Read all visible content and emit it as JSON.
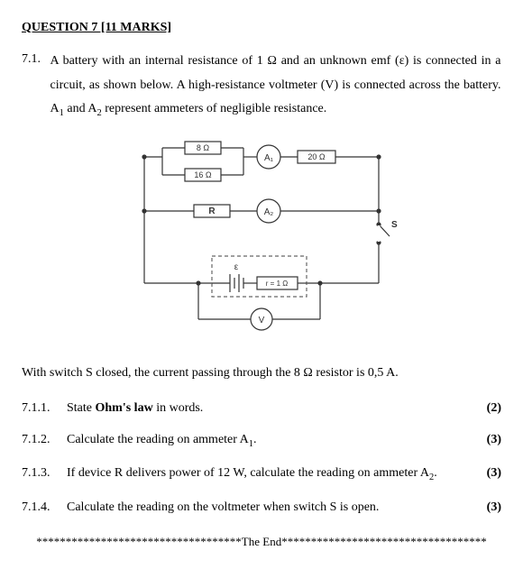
{
  "heading": "QUESTION 7 [11 MARKS]",
  "intro": {
    "number": "7.1.",
    "text_parts": {
      "p1": "A battery with an internal resistance of 1 Ω and an unknown emf (ε) is connected in a circuit, as shown below. A high-resistance voltmeter (V) is connected across the battery. ",
      "a1_label_prefix": "A",
      "a1_sub": "1",
      "and": " and ",
      "a2_label_prefix": "A",
      "a2_sub": "2",
      "p2": " represent ammeters of negligible resistance."
    }
  },
  "diagram": {
    "labels": {
      "r8": "8 Ω",
      "r16": "16 Ω",
      "r20": "20 Ω",
      "R": "R",
      "A1": "A₁",
      "A2": "A₂",
      "V": "V",
      "eps": "ε",
      "r_int": "r = 1 Ω",
      "S": "S"
    },
    "colors": {
      "wire": "#333333",
      "box_fill": "#ffffff",
      "text": "#333333",
      "dash": "#666666"
    },
    "stroke_width": 1.2,
    "dash_pattern": "4,3",
    "font_size_small": 9,
    "font_size_label": 10
  },
  "after_diagram": "With switch S closed, the current passing through the 8 Ω resistor is 0,5 A.",
  "subquestions": [
    {
      "num": "7.1.1.",
      "text_html": "State <b>Ohm's law</b> in words.",
      "marks": "(2)"
    },
    {
      "num": "7.1.2.",
      "text_html": "Calculate the reading on ammeter A<span class=\"sub1\">1</span>.",
      "marks": "(3)"
    },
    {
      "num": "7.1.3.",
      "text_html": "If device R delivers power of 12 W, calculate the reading on ammeter A<span class=\"sub1\">2</span>.",
      "marks": "(3)"
    },
    {
      "num": "7.1.4.",
      "text_html": "Calculate the reading on the voltmeter when switch S is open.",
      "marks": "(3)"
    }
  ],
  "endline": "***********************************The End***********************************"
}
